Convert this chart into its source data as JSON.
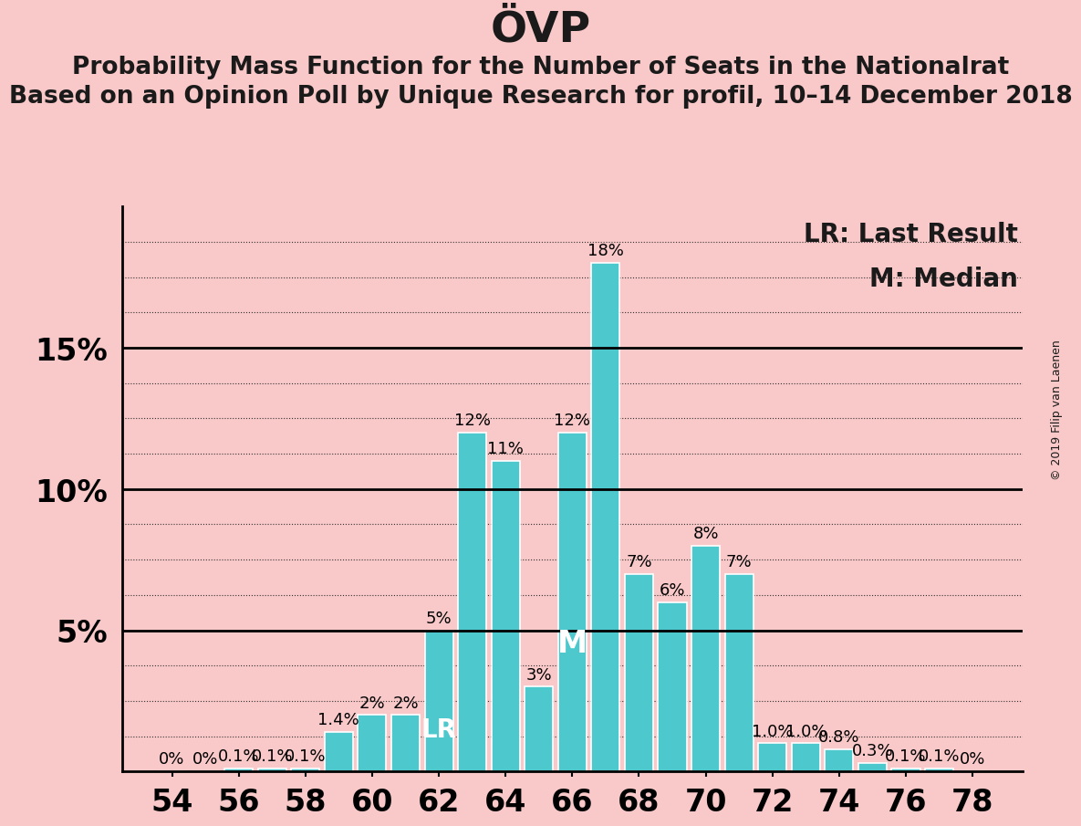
{
  "title": "ÖVP",
  "subtitle1": "Probability Mass Function for the Number of Seats in the Nationalrat",
  "subtitle2": "Based on an Opinion Poll by Unique Research for profil, 10–14 December 2018",
  "copyright": "© 2019 Filip van Laenen",
  "legend_lr": "LR: Last Result",
  "legend_m": "M: Median",
  "background_color": "#f9c8c8",
  "bar_color": "#4dc8cc",
  "bar_edge_color": "#ffffff",
  "x_values": [
    54,
    55,
    56,
    57,
    58,
    59,
    60,
    61,
    62,
    63,
    64,
    65,
    66,
    67,
    68,
    69,
    70,
    71,
    72,
    73,
    74,
    75,
    76,
    77,
    78
  ],
  "y_values": [
    0.0,
    0.0,
    0.1,
    0.1,
    0.1,
    1.4,
    2.0,
    2.0,
    5.0,
    12.0,
    11.0,
    3.0,
    12.0,
    18.0,
    7.0,
    6.0,
    8.0,
    7.0,
    1.0,
    1.0,
    0.8,
    0.3,
    0.1,
    0.1,
    0.0
  ],
  "y_labels": [
    "0%",
    "0%",
    "0.1%",
    "0.1%",
    "0.1%",
    "1.4%",
    "2%",
    "2%",
    "5%",
    "12%",
    "11%",
    "3%",
    "12%",
    "18%",
    "7%",
    "6%",
    "8%",
    "7%",
    "1.0%",
    "1.0%",
    "0.8%",
    "0.3%",
    "0.1%",
    "0.1%",
    "0%"
  ],
  "lr_seat": 62,
  "median_seat": 66,
  "major_yticks": [
    5,
    10,
    15
  ],
  "minor_ytick_step": 1.25,
  "ylim": [
    0,
    20
  ],
  "xlim": [
    52.5,
    79.5
  ],
  "xticks": [
    54,
    56,
    58,
    60,
    62,
    64,
    66,
    68,
    70,
    72,
    74,
    76,
    78
  ],
  "title_fontsize": 34,
  "subtitle_fontsize": 19,
  "bar_label_fontsize": 13,
  "legend_fontsize": 20,
  "ytick_fontsize": 24,
  "xtick_fontsize": 24,
  "lr_label_fontsize": 20,
  "m_label_fontsize": 24,
  "copyright_fontsize": 9,
  "bar_width": 0.85
}
